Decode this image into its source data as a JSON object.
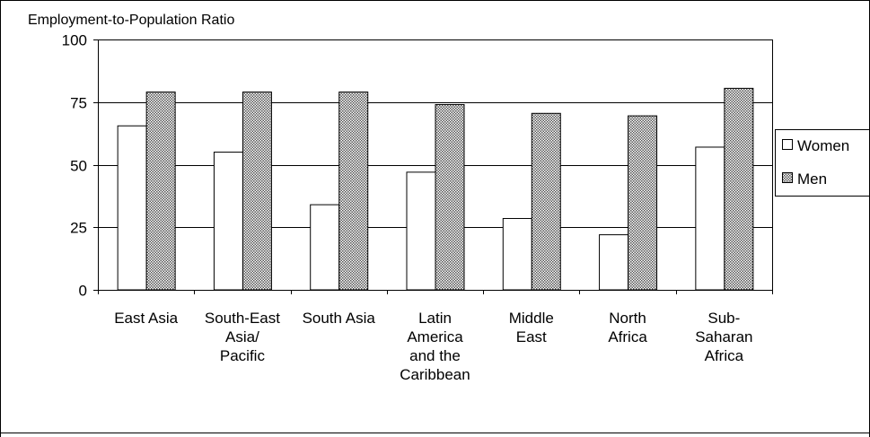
{
  "chart_data": {
    "type": "bar",
    "title": "Employment-to-Population Ratio",
    "xlabel": "",
    "ylabel": "",
    "ylim": [
      0,
      100
    ],
    "yticks": [
      0,
      25,
      50,
      75,
      100
    ],
    "grid": true,
    "legend_position": "right",
    "categories": [
      [
        "East Asia"
      ],
      [
        "South-East",
        "Asia/",
        "Pacific"
      ],
      [
        "South Asia"
      ],
      [
        "Latin",
        "America",
        "and the",
        "Caribbean"
      ],
      [
        "Middle",
        "East"
      ],
      [
        "North",
        "Africa"
      ],
      [
        "Sub-",
        "Saharan",
        "Africa"
      ]
    ],
    "series": [
      {
        "name": "Women",
        "values": [
          65.5,
          55,
          34,
          47,
          28.5,
          22,
          57
        ],
        "fill": "#ffffff",
        "pattern": "none"
      },
      {
        "name": "Men",
        "values": [
          79,
          79,
          79,
          74,
          70.5,
          69.5,
          80.5
        ],
        "fill": "#a0a0a0",
        "pattern": "checker"
      }
    ],
    "colors": {
      "gridline": "#000000",
      "bar_stroke": "#000000",
      "frame": "#000000"
    }
  }
}
